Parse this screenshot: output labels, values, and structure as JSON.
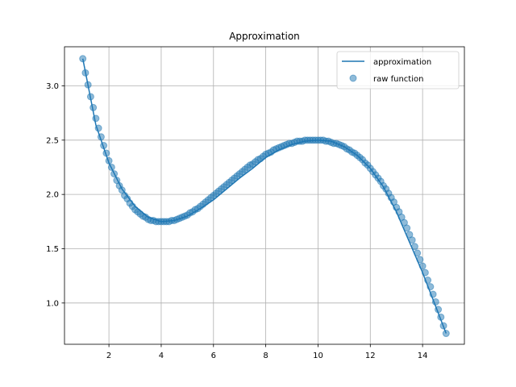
{
  "chart_data": {
    "type": "line",
    "title": "Approximation",
    "xlabel": "",
    "ylabel": "",
    "xlim": [
      0.3,
      15.6
    ],
    "ylim": [
      0.62,
      3.36
    ],
    "xticks": [
      2,
      4,
      6,
      8,
      10,
      12,
      14
    ],
    "yticks": [
      1.0,
      1.5,
      2.0,
      2.5,
      3.0
    ],
    "xtick_labels": [
      "2",
      "4",
      "6",
      "8",
      "10",
      "12",
      "14"
    ],
    "ytick_labels": [
      "1.0",
      "1.5",
      "2.0",
      "2.5",
      "3.0"
    ],
    "grid": true,
    "legend_placement": "top-right",
    "series": [
      {
        "name": "approximation",
        "kind": "line",
        "color": "#1f77b4",
        "x": [
          1.0,
          1.5,
          2.0,
          2.5,
          3.0,
          3.5,
          4.0,
          4.5,
          5.0,
          5.5,
          6.0,
          6.5,
          7.0,
          7.5,
          8.0,
          8.5,
          9.0,
          9.5,
          10.0,
          10.5,
          11.0,
          11.5,
          12.0,
          12.5,
          13.0,
          13.5,
          14.0,
          14.5,
          14.9
        ],
        "y": [
          3.25,
          2.64,
          2.29,
          2.05,
          1.89,
          1.79,
          1.75,
          1.76,
          1.8,
          1.87,
          1.95,
          2.05,
          2.15,
          2.24,
          2.34,
          2.41,
          2.46,
          2.49,
          2.5,
          2.49,
          2.44,
          2.36,
          2.24,
          2.07,
          1.84,
          1.56,
          1.28,
          0.97,
          0.72
        ]
      },
      {
        "name": "raw function",
        "kind": "scatter",
        "color": "#1f77b4",
        "alpha": 0.5,
        "x": [
          1.0,
          1.1,
          1.2,
          1.3,
          1.4,
          1.5,
          1.6,
          1.7,
          1.8,
          1.9,
          2.0,
          2.1,
          2.2,
          2.3,
          2.4,
          2.5,
          2.6,
          2.7,
          2.8,
          2.9,
          3.0,
          3.1,
          3.2,
          3.3,
          3.4,
          3.5,
          3.6,
          3.7,
          3.8,
          3.9,
          4.0,
          4.1,
          4.2,
          4.3,
          4.4,
          4.5,
          4.6,
          4.7,
          4.8,
          4.9,
          5.0,
          5.1,
          5.2,
          5.3,
          5.4,
          5.5,
          5.6,
          5.7,
          5.8,
          5.9,
          6.0,
          6.1,
          6.2,
          6.3,
          6.4,
          6.5,
          6.6,
          6.7,
          6.8,
          6.9,
          7.0,
          7.1,
          7.2,
          7.3,
          7.4,
          7.5,
          7.6,
          7.7,
          7.8,
          7.9,
          8.0,
          8.1,
          8.2,
          8.3,
          8.4,
          8.5,
          8.6,
          8.7,
          8.8,
          8.9,
          9.0,
          9.1,
          9.2,
          9.3,
          9.4,
          9.5,
          9.6,
          9.7,
          9.8,
          9.9,
          10.0,
          10.1,
          10.2,
          10.3,
          10.4,
          10.5,
          10.6,
          10.7,
          10.8,
          10.9,
          11.0,
          11.1,
          11.2,
          11.3,
          11.4,
          11.5,
          11.6,
          11.7,
          11.8,
          11.9,
          12.0,
          12.1,
          12.2,
          12.3,
          12.4,
          12.5,
          12.6,
          12.7,
          12.8,
          12.9,
          13.0,
          13.1,
          13.2,
          13.3,
          13.4,
          13.5,
          13.6,
          13.7,
          13.8,
          13.9,
          14.0,
          14.1,
          14.2,
          14.3,
          14.4,
          14.5,
          14.6,
          14.7,
          14.8,
          14.9
        ],
        "y": [
          3.25,
          3.12,
          3.01,
          2.9,
          2.8,
          2.7,
          2.61,
          2.53,
          2.45,
          2.38,
          2.31,
          2.25,
          2.19,
          2.13,
          2.08,
          2.04,
          1.99,
          1.96,
          1.92,
          1.89,
          1.86,
          1.84,
          1.82,
          1.8,
          1.79,
          1.77,
          1.76,
          1.76,
          1.75,
          1.75,
          1.75,
          1.75,
          1.75,
          1.75,
          1.76,
          1.76,
          1.77,
          1.78,
          1.79,
          1.8,
          1.81,
          1.83,
          1.84,
          1.86,
          1.87,
          1.89,
          1.91,
          1.93,
          1.95,
          1.97,
          1.99,
          2.01,
          2.03,
          2.05,
          2.07,
          2.09,
          2.11,
          2.13,
          2.15,
          2.17,
          2.19,
          2.21,
          2.23,
          2.25,
          2.27,
          2.28,
          2.3,
          2.32,
          2.33,
          2.35,
          2.37,
          2.38,
          2.39,
          2.41,
          2.42,
          2.43,
          2.44,
          2.45,
          2.46,
          2.47,
          2.47,
          2.48,
          2.49,
          2.49,
          2.49,
          2.5,
          2.5,
          2.5,
          2.5,
          2.5,
          2.5,
          2.5,
          2.5,
          2.49,
          2.49,
          2.48,
          2.47,
          2.47,
          2.46,
          2.45,
          2.44,
          2.42,
          2.41,
          2.39,
          2.38,
          2.36,
          2.34,
          2.32,
          2.29,
          2.27,
          2.24,
          2.21,
          2.18,
          2.15,
          2.12,
          2.08,
          2.05,
          2.01,
          1.97,
          1.93,
          1.88,
          1.84,
          1.79,
          1.74,
          1.69,
          1.63,
          1.58,
          1.52,
          1.46,
          1.4,
          1.34,
          1.28,
          1.21,
          1.15,
          1.08,
          1.01,
          0.94,
          0.87,
          0.79,
          0.72
        ]
      }
    ]
  }
}
